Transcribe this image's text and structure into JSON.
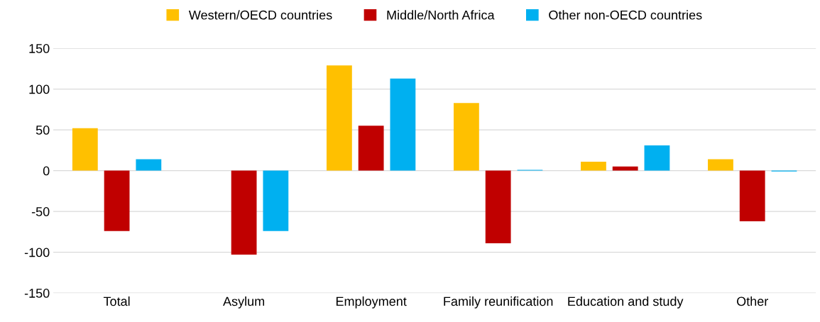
{
  "chart_data": {
    "type": "bar",
    "categories": [
      "Total",
      "Asylum",
      "Employment",
      "Family reunification",
      "Education and study",
      "Other"
    ],
    "series": [
      {
        "name": "Western/OECD countries",
        "color": "#ffc000",
        "values": [
          52,
          0,
          129,
          83,
          11,
          14
        ]
      },
      {
        "name": "Middle/North Africa",
        "color": "#c00000",
        "values": [
          -74,
          -103,
          55,
          -89,
          5,
          -62
        ]
      },
      {
        "name": "Other non-OECD countries",
        "color": "#00b0f0",
        "values": [
          14,
          -74,
          113,
          1,
          31,
          -1
        ]
      }
    ],
    "ylim": [
      -150,
      150
    ],
    "yticks": [
      -150,
      -100,
      -50,
      0,
      50,
      100,
      150
    ],
    "grid": "y",
    "legend": "top"
  }
}
